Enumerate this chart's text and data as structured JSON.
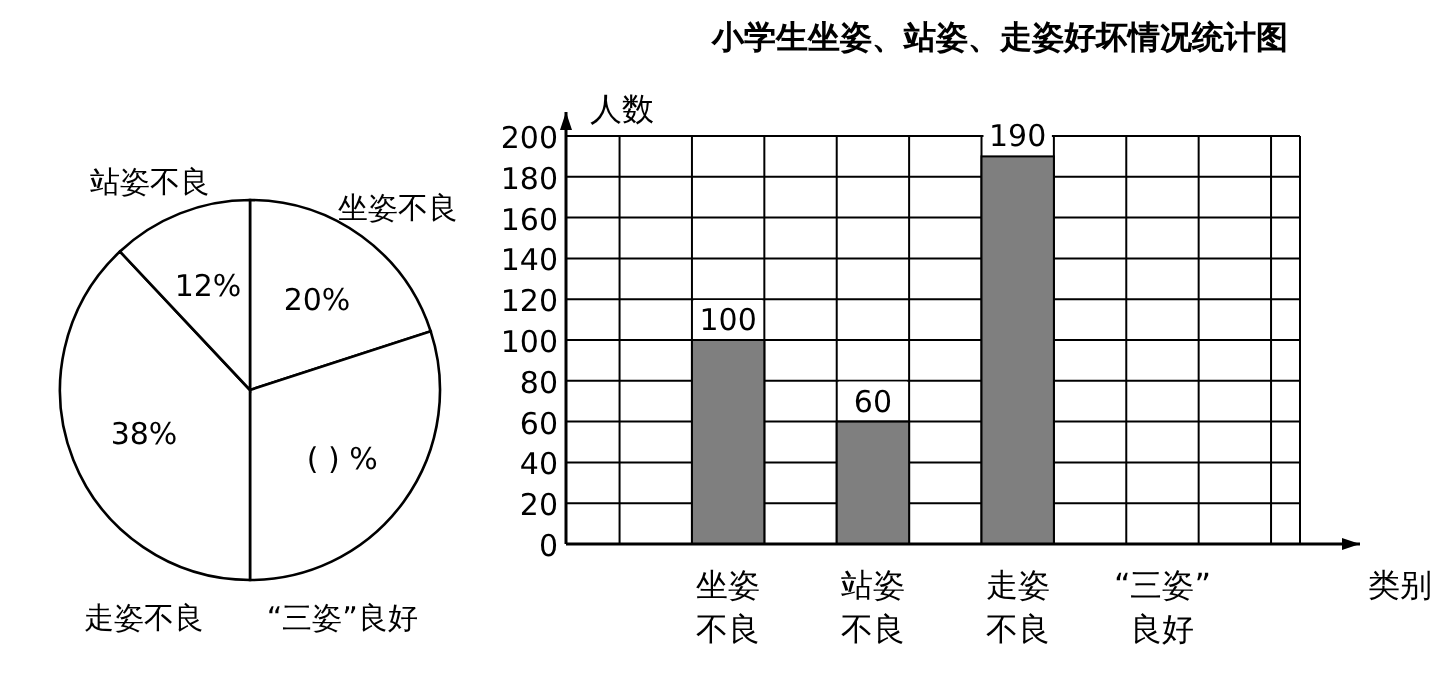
{
  "chart_data": [
    {
      "type": "pie",
      "categories": [
        "坐姿不良",
        "“三姿”良好",
        "走姿不良",
        "站姿不良"
      ],
      "values": [
        20,
        30,
        38,
        12
      ],
      "colors": [
        "#ffffff",
        "#ffffff",
        "#ffffff",
        "#ffffff"
      ],
      "value_labels": [
        "20%",
        "(  ) %",
        "38%",
        "12%"
      ]
    },
    {
      "type": "bar",
      "title": "小学生坐姿、站姿、走姿好坏情况统计图",
      "xlabel": "类别",
      "ylabel": "人数",
      "categories": [
        "坐姿不良",
        "站姿不良",
        "走姿不良",
        "“三姿”良好"
      ],
      "values": [
        100,
        60,
        190,
        null
      ],
      "color": "#7f7f7f",
      "ylim": [
        0,
        200
      ],
      "yticks": [
        0,
        20,
        40,
        60,
        80,
        100,
        120,
        140,
        160,
        180,
        200
      ],
      "grid": true,
      "data_labels": true
    }
  ]
}
